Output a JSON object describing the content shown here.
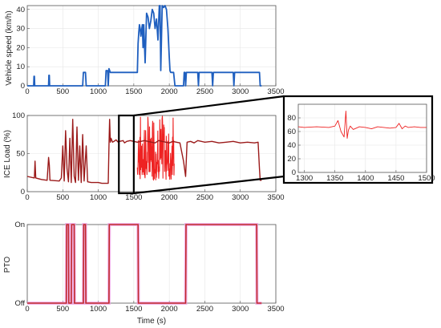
{
  "colors": {
    "speed": "#1f5fbf",
    "load": "#ee2222",
    "load_dark": "#9b1a1a",
    "pto": "#c0282a",
    "pto_glow": "#f0a6e8",
    "zoom_box": "#000000",
    "axes": "#555555"
  },
  "chart_data": [
    {
      "id": "speed",
      "type": "line",
      "title": "",
      "xlabel": "",
      "ylabel": "Vehicle speed (km/h)",
      "xlim": [
        0,
        3500
      ],
      "ylim": [
        0,
        42
      ],
      "xticks": [
        0,
        500,
        1000,
        1500,
        2000,
        2500,
        3000,
        3500
      ],
      "yticks": [
        0,
        10,
        20,
        30,
        40
      ],
      "grid": true,
      "series": [
        {
          "x": [
            0,
            90,
            95,
            100,
            105,
            110,
            300,
            305,
            310,
            315,
            320,
            780,
            790,
            800,
            810,
            820,
            830,
            1100,
            1110,
            1130,
            1140,
            1150,
            1170,
            1180,
            1550,
            1560,
            1570,
            1580,
            1590,
            1600,
            1620,
            1630,
            1640,
            1660,
            1680,
            1700,
            1720,
            1740,
            1760,
            1780,
            1800,
            1820,
            1840,
            1860,
            1870,
            1880,
            1900,
            1920,
            1940,
            1960,
            1980,
            2000,
            2010,
            2020,
            2040,
            2060,
            2080,
            2200,
            2210,
            2220,
            2230,
            2240,
            2400,
            2410,
            2420,
            2430,
            2600,
            2610,
            2620,
            2900,
            2910,
            2920,
            3270,
            3280,
            3290,
            3300
          ],
          "y": [
            0,
            0,
            5,
            5,
            0,
            0,
            0,
            5.5,
            5.5,
            0,
            0,
            0,
            7,
            7,
            7,
            7,
            0,
            0,
            8,
            8,
            0,
            9,
            7,
            7,
            7,
            22,
            28,
            32,
            30,
            26,
            32,
            20,
            32,
            12,
            38,
            36,
            30,
            34,
            40,
            38,
            30,
            35,
            24,
            42,
            42,
            8,
            42,
            41,
            42,
            40,
            30,
            15,
            8,
            7,
            7,
            7,
            0,
            0,
            7,
            7,
            0,
            7,
            7,
            0,
            7,
            7,
            7,
            0,
            7,
            7,
            0,
            7,
            7,
            0,
            0,
            0
          ]
        }
      ]
    },
    {
      "id": "load",
      "type": "line",
      "title": "",
      "xlabel": "",
      "ylabel": "ICE Load (%)",
      "xlim": [
        0,
        3500
      ],
      "ylim": [
        0,
        100
      ],
      "xticks": [
        0,
        500,
        1000,
        1500,
        2000,
        2500,
        3000,
        3500
      ],
      "yticks": [
        0,
        50,
        100
      ],
      "grid": true,
      "series": [
        {
          "x": [
            0,
            100,
            110,
            120,
            200,
            280,
            300,
            310,
            320,
            450,
            480,
            500,
            520,
            540,
            560,
            580,
            600,
            620,
            640,
            660,
            680,
            700,
            720,
            740,
            760,
            780,
            800,
            830,
            850,
            900,
            950,
            1000,
            1050,
            1100,
            1140,
            1150,
            1160,
            1170,
            1180,
            1200,
            1220,
            1250,
            1280,
            1300,
            1350,
            1370,
            1400,
            1450,
            1500,
            1550,
            1600,
            1650,
            1700,
            1750,
            1800,
            1850,
            1900,
            1950,
            2000,
            2050,
            2100,
            2150,
            2200,
            2230,
            2250,
            2300,
            2350,
            2400,
            2500,
            2600,
            2700,
            2800,
            2900,
            3000,
            3100,
            3200,
            3250,
            3270,
            3280,
            3300
          ],
          "y": [
            20,
            18,
            40,
            18,
            16,
            15,
            45,
            35,
            15,
            14,
            18,
            60,
            14,
            80,
            30,
            13,
            70,
            12,
            95,
            20,
            12,
            85,
            15,
            60,
            12,
            75,
            14,
            60,
            13,
            12,
            12,
            12,
            11,
            11,
            11,
            60,
            95,
            65,
            70,
            65,
            66,
            68,
            65,
            66,
            67,
            64,
            66,
            67,
            66,
            65,
            66,
            67,
            66,
            65,
            64,
            67,
            66,
            65,
            64,
            66,
            65,
            64,
            40,
            20,
            65,
            66,
            64,
            67,
            65,
            66,
            64,
            65,
            66,
            64,
            65,
            64,
            65,
            30,
            15,
            15
          ],
          "noise": {
            "from": 1550,
            "to": 2070,
            "amplitude": "full-range"
          }
        }
      ]
    },
    {
      "id": "zoom",
      "type": "line",
      "title": "",
      "xlabel": "",
      "ylabel": "",
      "xlim": [
        1290,
        1500
      ],
      "ylim": [
        0,
        100
      ],
      "xticks": [
        1300,
        1350,
        1400,
        1450,
        1500
      ],
      "yticks": [
        0,
        20,
        40,
        60,
        80
      ],
      "grid": true,
      "series": [
        {
          "x": [
            1290,
            1300,
            1320,
            1340,
            1350,
            1355,
            1360,
            1365,
            1368,
            1370,
            1372,
            1375,
            1380,
            1390,
            1400,
            1410,
            1420,
            1430,
            1440,
            1450,
            1455,
            1460,
            1465,
            1470,
            1480,
            1490,
            1500
          ],
          "y": [
            67,
            66,
            67,
            66,
            68,
            76,
            60,
            52,
            90,
            50,
            62,
            68,
            63,
            67,
            66,
            64,
            67,
            66,
            65,
            66,
            72,
            64,
            68,
            66,
            67,
            66,
            66
          ]
        }
      ]
    },
    {
      "id": "pto",
      "type": "line",
      "title": "",
      "xlabel": "Time (s)",
      "ylabel": "PTO",
      "xlim": [
        0,
        3500
      ],
      "ylim": [
        0,
        1
      ],
      "xticks": [
        0,
        500,
        1000,
        1500,
        2000,
        2500,
        3000,
        3500
      ],
      "yticks": [
        0,
        1
      ],
      "ytick_labels": [
        "Off",
        "On"
      ],
      "grid": true,
      "series": [
        {
          "x": [
            0,
            550,
            555,
            580,
            585,
            620,
            625,
            660,
            665,
            790,
            795,
            820,
            825,
            1150,
            1155,
            1560,
            1565,
            2230,
            2235,
            3230,
            3235,
            3300
          ],
          "y": [
            0,
            0,
            1,
            1,
            0,
            0,
            1,
            1,
            0,
            0,
            1,
            1,
            0,
            0,
            1,
            1,
            0,
            0,
            1,
            1,
            0,
            0
          ]
        }
      ]
    }
  ]
}
